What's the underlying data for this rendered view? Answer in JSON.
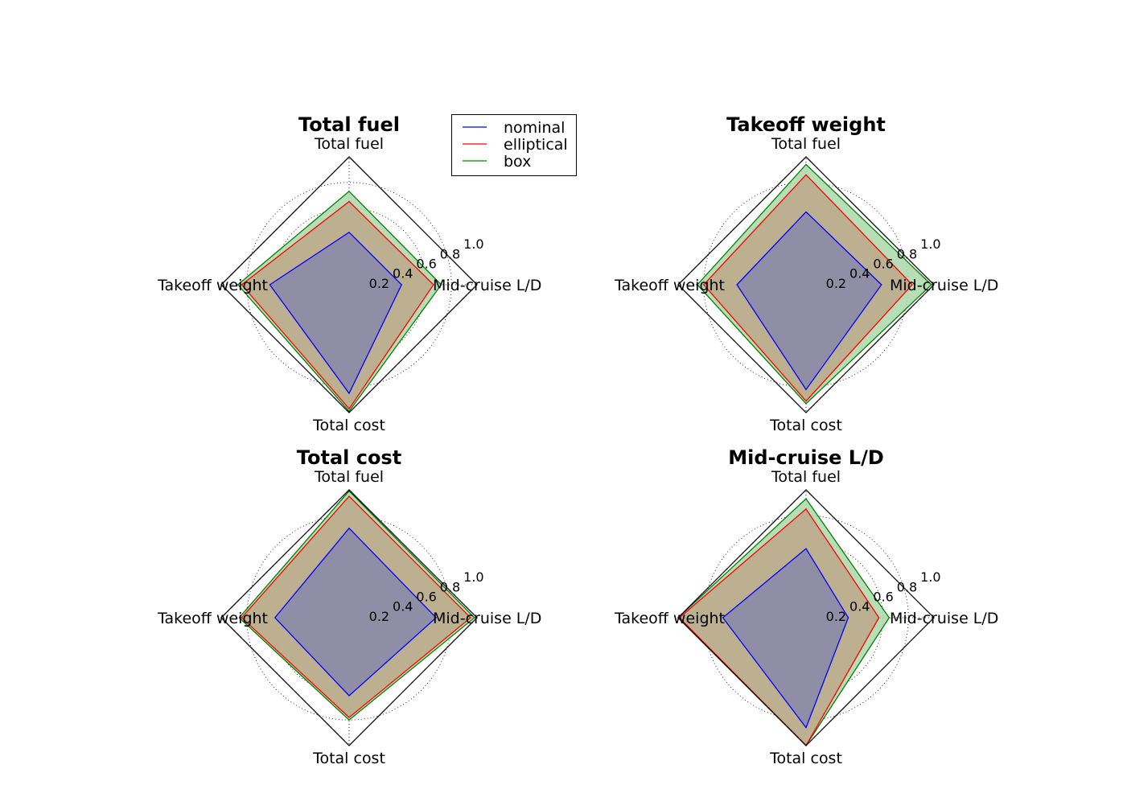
{
  "chart_data": [
    {
      "type": "radar",
      "title": "Total fuel",
      "axes": [
        "Total fuel",
        "Mid-cruise L/D",
        "Total cost",
        "Takeoff weight"
      ],
      "rlim": [
        0,
        1.0
      ],
      "rticks": [
        "0.2",
        "0.4",
        "0.6",
        "0.8",
        "1.0"
      ],
      "grid": true,
      "series": [
        {
          "name": "nominal",
          "values": [
            0.41,
            0.41,
            0.85,
            0.62
          ]
        },
        {
          "name": "elliptical",
          "values": [
            0.65,
            0.66,
            0.97,
            0.84
          ]
        },
        {
          "name": "box",
          "values": [
            0.73,
            0.72,
            0.99,
            0.87
          ]
        }
      ]
    },
    {
      "type": "radar",
      "title": "Takeoff weight",
      "axes": [
        "Total fuel",
        "Mid-cruise L/D",
        "Total cost",
        "Takeoff weight"
      ],
      "rlim": [
        0,
        1.0
      ],
      "rticks": [
        "0.2",
        "0.4",
        "0.6",
        "0.8",
        "1.0"
      ],
      "grid": true,
      "series": [
        {
          "name": "nominal",
          "values": [
            0.57,
            0.59,
            0.82,
            0.54
          ]
        },
        {
          "name": "elliptical",
          "values": [
            0.86,
            0.83,
            0.91,
            0.8
          ]
        },
        {
          "name": "box",
          "values": [
            0.94,
            0.98,
            0.93,
            0.85
          ]
        }
      ]
    },
    {
      "type": "radar",
      "title": "Total cost",
      "axes": [
        "Total fuel",
        "Mid-cruise L/D",
        "Total cost",
        "Takeoff weight"
      ],
      "rlim": [
        0,
        1.0
      ],
      "rticks": [
        "0.2",
        "0.4",
        "0.6",
        "0.8",
        "1.0"
      ],
      "grid": true,
      "series": [
        {
          "name": "nominal",
          "values": [
            0.7,
            0.68,
            0.61,
            0.58
          ]
        },
        {
          "name": "elliptical",
          "values": [
            0.95,
            0.95,
            0.78,
            0.84
          ]
        },
        {
          "name": "box",
          "values": [
            0.99,
            0.98,
            0.8,
            0.86
          ]
        }
      ]
    },
    {
      "type": "radar",
      "title": "Mid-cruise L/D",
      "axes": [
        "Total fuel",
        "Mid-cruise L/D",
        "Total cost",
        "Takeoff weight"
      ],
      "rlim": [
        0,
        1.0
      ],
      "rticks": [
        "0.2",
        "0.4",
        "0.6",
        "0.8",
        "1.0"
      ],
      "grid": true,
      "series": [
        {
          "name": "nominal",
          "values": [
            0.54,
            0.33,
            0.86,
            0.65
          ]
        },
        {
          "name": "elliptical",
          "values": [
            0.85,
            0.57,
            1.0,
            0.99
          ]
        },
        {
          "name": "box",
          "values": [
            0.93,
            0.65,
            1.0,
            1.0
          ]
        }
      ]
    }
  ],
  "legend": {
    "placement": "between top charts",
    "entries": [
      {
        "label": "nominal",
        "color": "#0000ff"
      },
      {
        "label": "elliptical",
        "color": "#ff0000"
      },
      {
        "label": "box",
        "color": "#008000"
      }
    ]
  },
  "colors": {
    "nominal": "#0000ff",
    "elliptical": "#ff0000",
    "box": "#008000",
    "nominal_fill": "#8888aa",
    "elliptical_fill": "#bda88a",
    "box_fill": "#abd8ab"
  }
}
